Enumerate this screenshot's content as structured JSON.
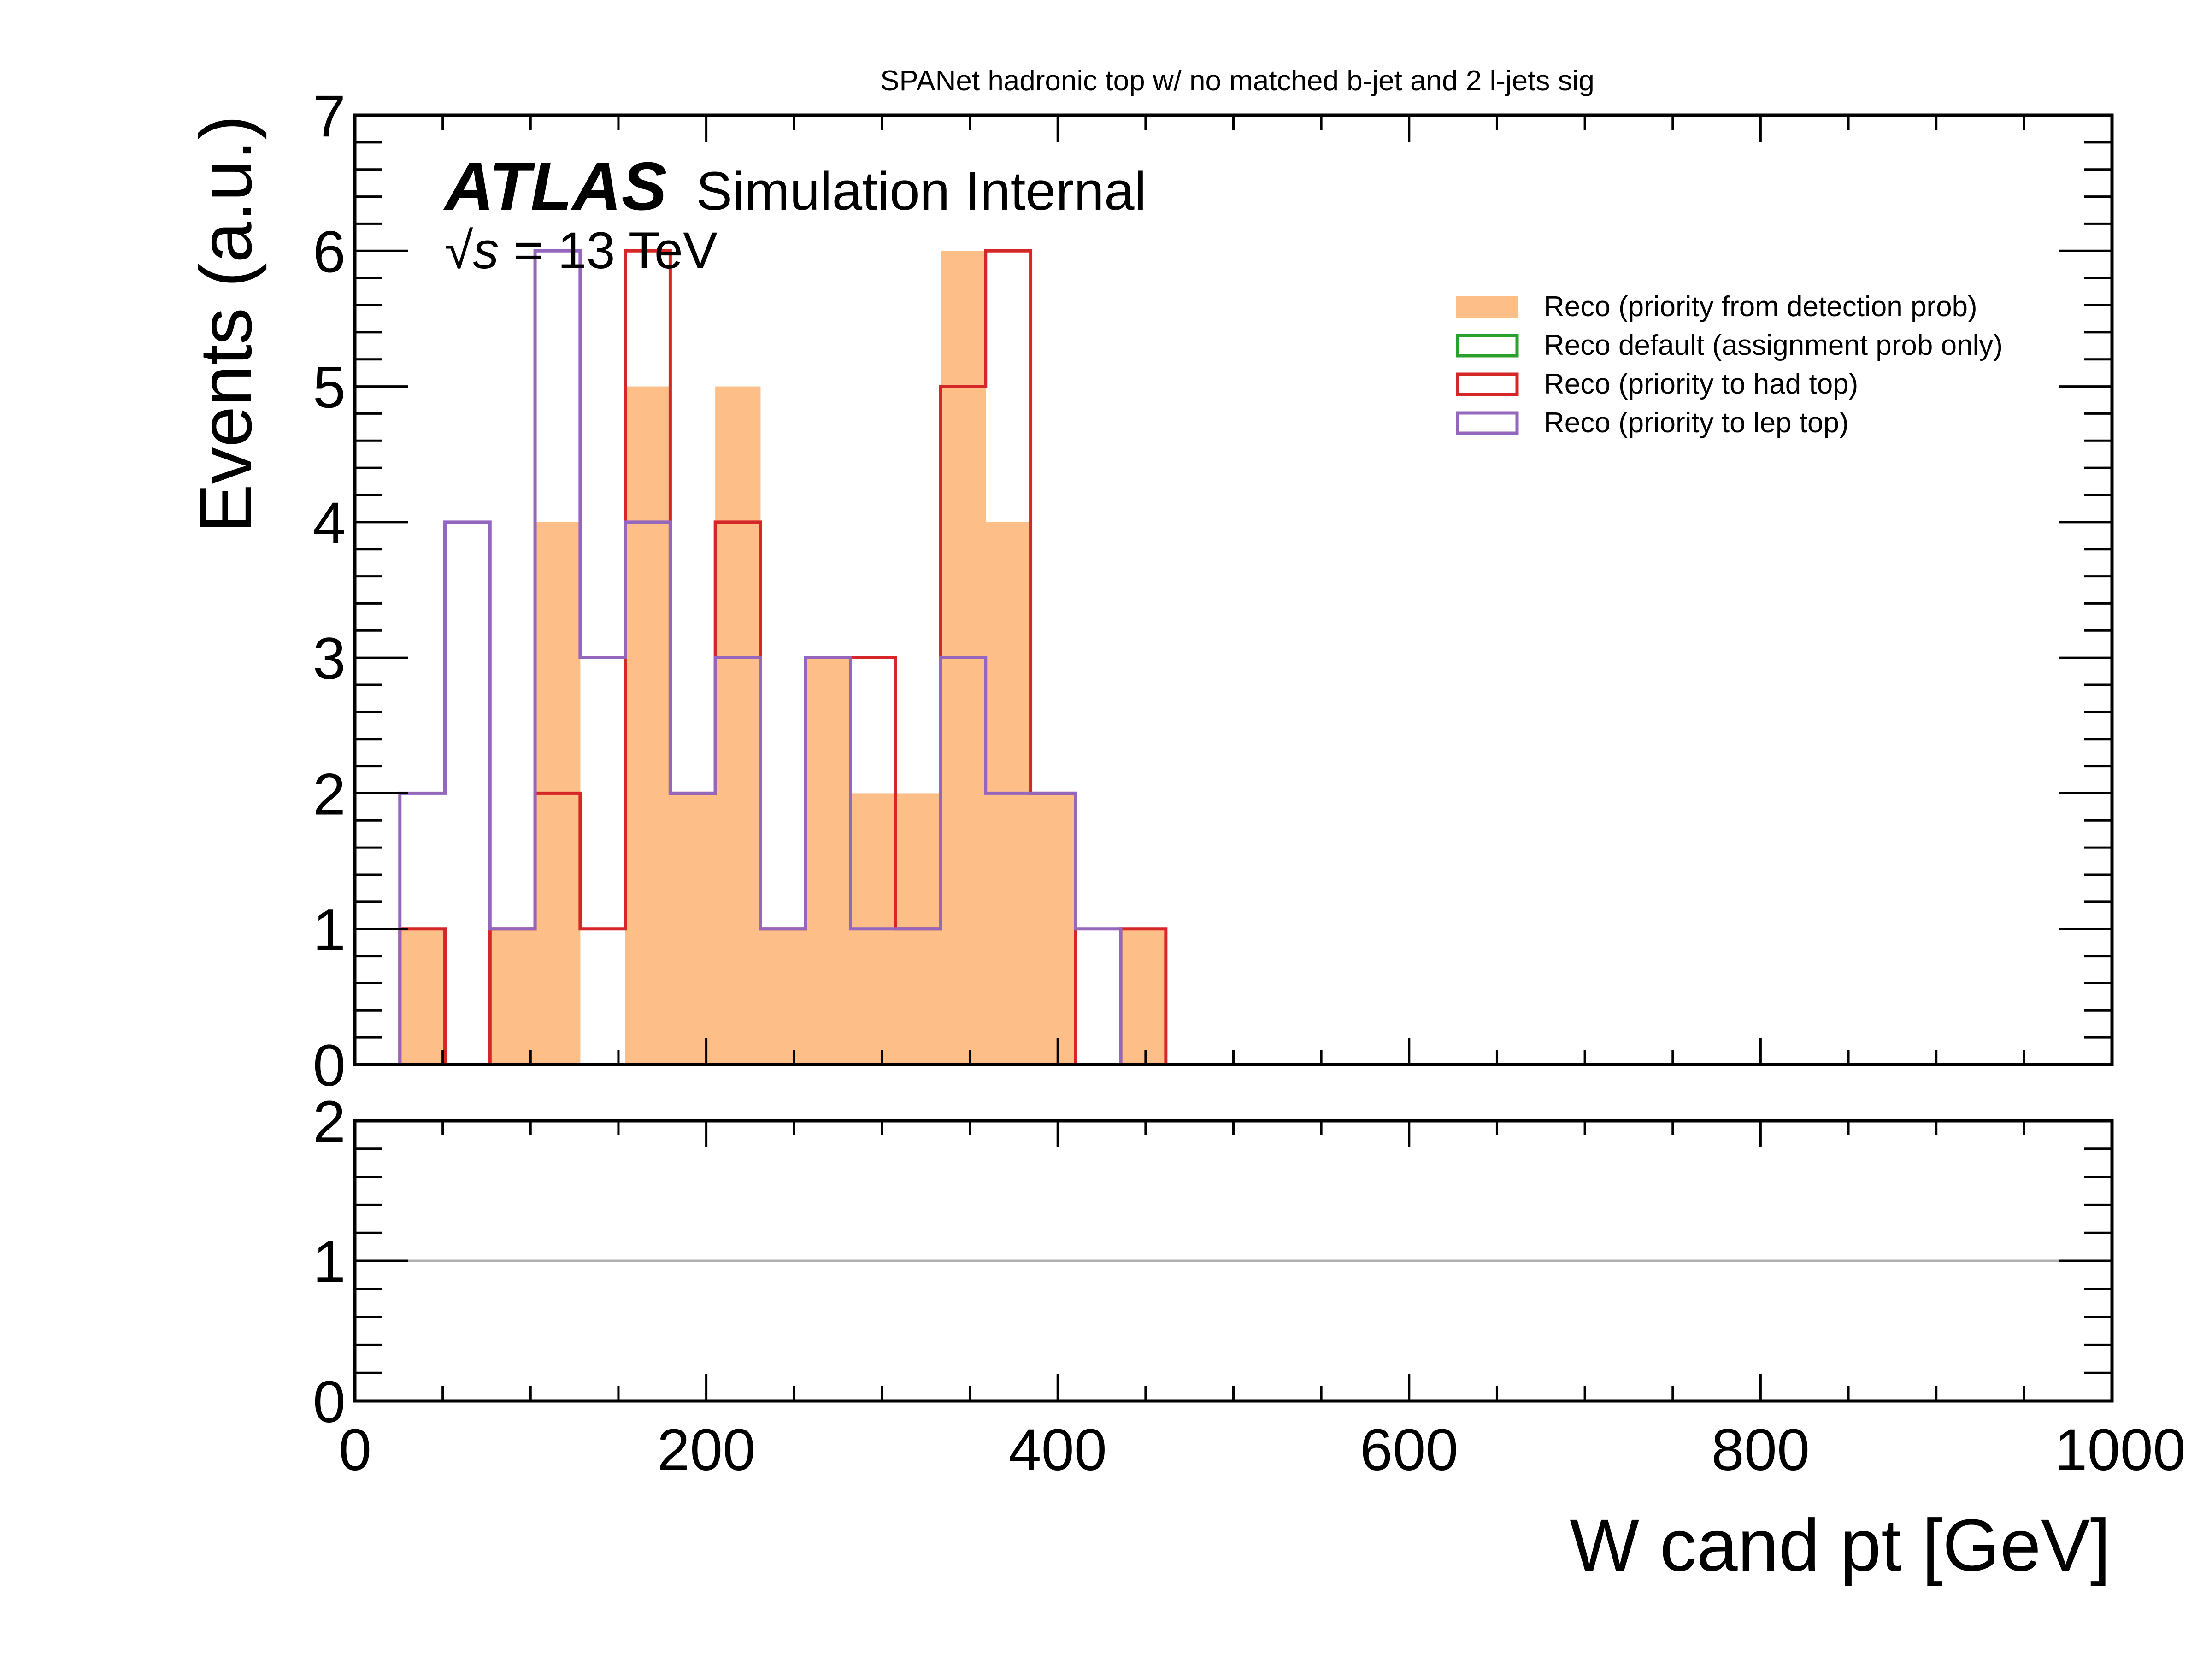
{
  "chart_data": {
    "type": "histogram",
    "title": "SPANet hadronic top w/ no matched b-jet and 2 l-jets sig",
    "experiment_label": "ATLAS",
    "experiment_status": "Simulation Internal",
    "energy_label_prefix": "√s",
    "energy_label_suffix": " = 13 TeV",
    "xlabel": "W cand pt [GeV]",
    "ylabel": "Events (a.u.)",
    "xlim": [
      0,
      1000
    ],
    "ylim": [
      0,
      7
    ],
    "ratio_ylim": [
      0,
      2
    ],
    "ratio_reference": 1,
    "x_ticks": [
      0,
      200,
      400,
      600,
      800,
      1000
    ],
    "y_ticks": [
      0,
      1,
      2,
      3,
      4,
      5,
      6,
      7
    ],
    "ratio_y_ticks": [
      0,
      1,
      2
    ],
    "bin_edges": [
      25.64,
      51.28,
      76.92,
      102.56,
      128.21,
      153.85,
      179.49,
      205.13,
      230.77,
      256.41,
      282.05,
      307.69,
      333.33,
      358.97,
      384.62,
      410.26,
      435.9,
      461.54
    ],
    "legend_position": "top-right",
    "series": [
      {
        "name": "Reco (priority from detection prob)",
        "style": "filled",
        "color": "#fdbf87",
        "values": [
          1,
          0,
          1,
          4,
          0,
          5,
          2,
          5,
          1,
          3,
          2,
          2,
          6,
          4,
          2,
          0,
          1
        ]
      },
      {
        "name": "Reco default (assignment prob only)",
        "style": "step",
        "color": "#2ca02c",
        "values": []
      },
      {
        "name": "Reco (priority to had top)",
        "style": "step",
        "color": "#d62728",
        "values": [
          1,
          0,
          1,
          2,
          1,
          6,
          2,
          4,
          1,
          3,
          3,
          1,
          5,
          6,
          2,
          0,
          1
        ]
      },
      {
        "name": "Reco (priority to lep top)",
        "style": "step",
        "color": "#9467bd",
        "values": [
          2,
          4,
          1,
          6,
          3,
          4,
          2,
          3,
          1,
          3,
          1,
          1,
          3,
          2,
          2,
          1,
          0
        ]
      }
    ]
  }
}
